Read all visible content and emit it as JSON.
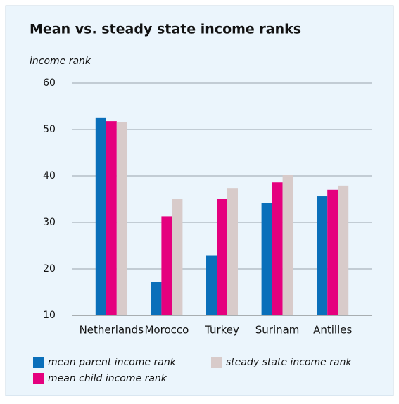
{
  "chart_data": {
    "type": "bar",
    "title": "Mean vs. steady state income ranks",
    "y_label": "income rank",
    "categories": [
      "Netherlands",
      "Morocco",
      "Turkey",
      "Surinam",
      "Antilles"
    ],
    "series": [
      {
        "name": "mean parent income rank",
        "color": "#0a6fba",
        "values": [
          52.6,
          17.2,
          22.8,
          34.1,
          35.6
        ]
      },
      {
        "name": "mean child income rank",
        "color": "#e5007e",
        "values": [
          51.8,
          31.3,
          35.0,
          38.6,
          37.0
        ]
      },
      {
        "name": "steady state income rank",
        "color": "#d8cbca",
        "values": [
          51.6,
          35.0,
          37.4,
          40.2,
          37.9
        ]
      }
    ],
    "ylim": [
      10,
      60
    ],
    "yticks": [
      10,
      20,
      30,
      40,
      50,
      60
    ],
    "grid": true
  }
}
